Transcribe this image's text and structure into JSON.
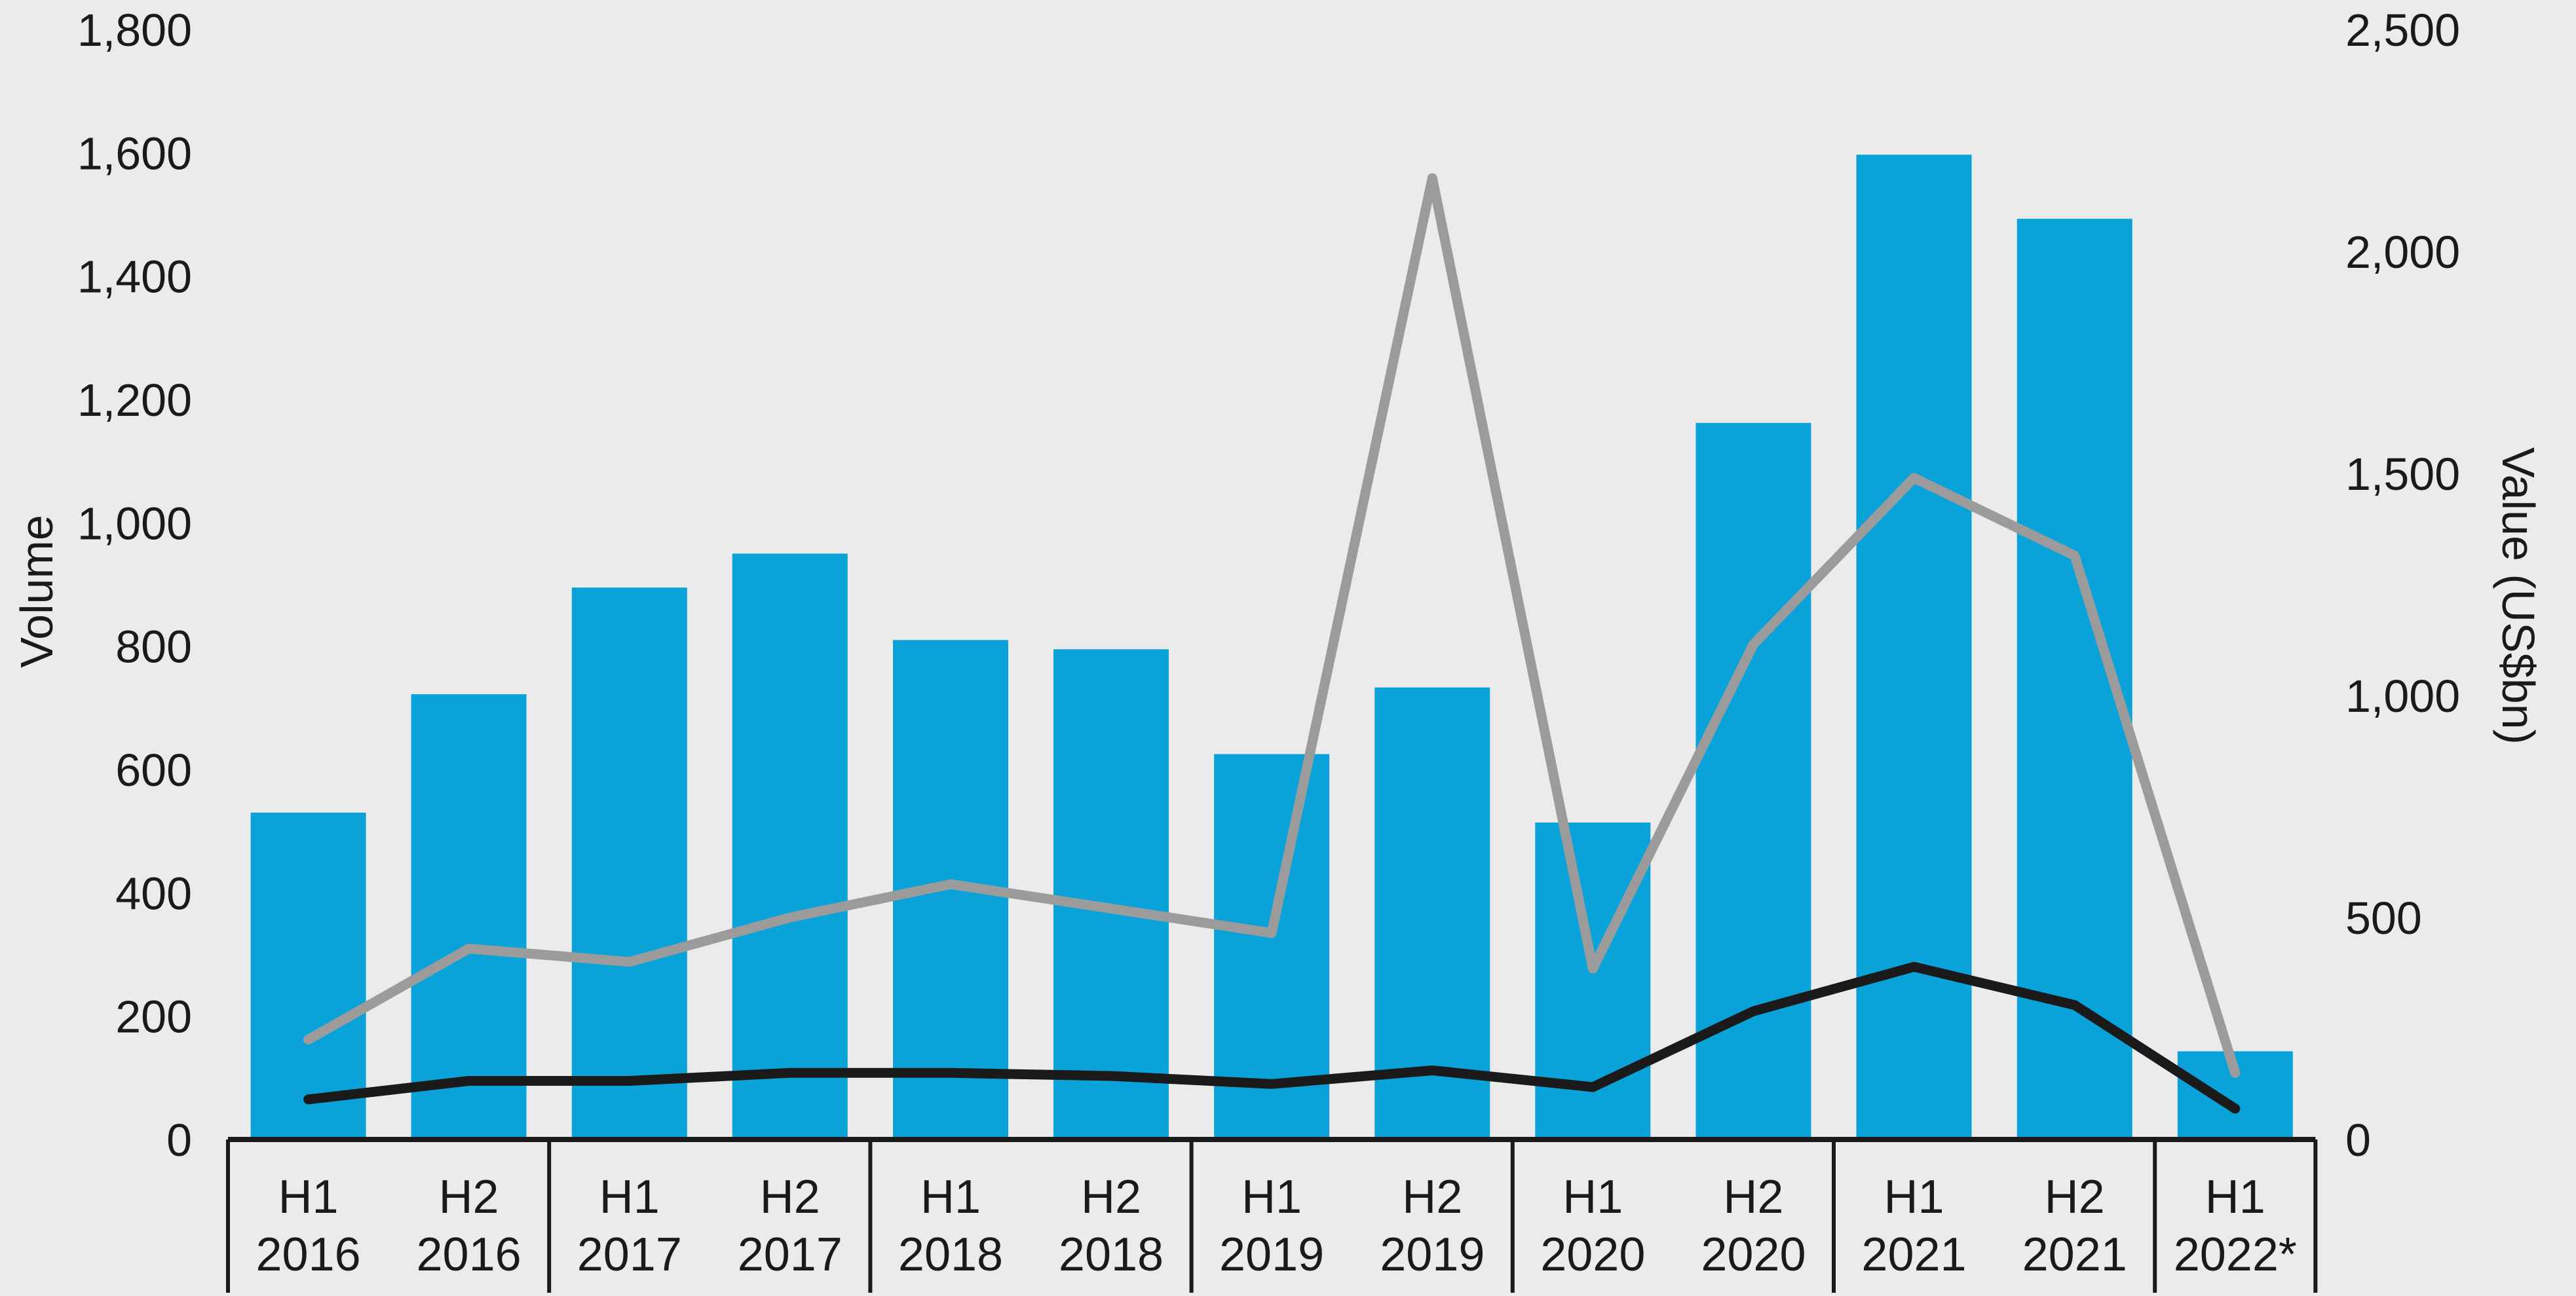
{
  "chart_data": {
    "type": "bar",
    "categories": [
      [
        "H1",
        "2016"
      ],
      [
        "H2",
        "2016"
      ],
      [
        "H1",
        "2017"
      ],
      [
        "H2",
        "2017"
      ],
      [
        "H1",
        "2018"
      ],
      [
        "H2",
        "2018"
      ],
      [
        "H1",
        "2019"
      ],
      [
        "H2",
        "2019"
      ],
      [
        "H1",
        "2020"
      ],
      [
        "H2",
        "2020"
      ],
      [
        "H1",
        "2021"
      ],
      [
        "H2",
        "2021"
      ],
      [
        "H1",
        "2022*"
      ]
    ],
    "year_groups": [
      [
        0,
        1
      ],
      [
        2,
        3
      ],
      [
        4,
        5
      ],
      [
        6,
        7
      ],
      [
        8,
        9
      ],
      [
        10,
        11
      ],
      [
        12,
        12
      ]
    ],
    "ylabel_left": "Volume",
    "ylabel_right": "Value (US$bn)",
    "ylim_left": [
      0,
      1800
    ],
    "ylim_right": [
      0,
      2500
    ],
    "yticks_left": [
      "0",
      "200",
      "400",
      "600",
      "800",
      "1,000",
      "1,200",
      "1,400",
      "1,600",
      "1,800"
    ],
    "yticks_right": [
      "0",
      "500",
      "1,000",
      "1,500",
      "2,000",
      "2,500"
    ],
    "ytick_values_left": [
      0,
      200,
      400,
      600,
      800,
      1000,
      1200,
      1400,
      1600,
      1800
    ],
    "ytick_values_right": [
      0,
      500,
      1000,
      1500,
      2000,
      2500
    ],
    "grid": false,
    "series": [
      {
        "type": "bar",
        "axis": "left",
        "color": "#0aa3d9",
        "values": [
          530,
          722,
          895,
          950,
          810,
          795,
          625,
          733,
          514,
          1162,
          1597,
          1493,
          143
        ]
      },
      {
        "type": "line",
        "axis": "right",
        "color": "#9b9b9b",
        "values": [
          225,
          430,
          400,
          500,
          575,
          520,
          465,
          2165,
          385,
          1115,
          1490,
          1315,
          150
        ]
      },
      {
        "type": "line",
        "axis": "left",
        "color": "#1a1a1a",
        "values": [
          65,
          95,
          95,
          108,
          108,
          103,
          90,
          112,
          85,
          208,
          280,
          218,
          50
        ]
      }
    ]
  }
}
